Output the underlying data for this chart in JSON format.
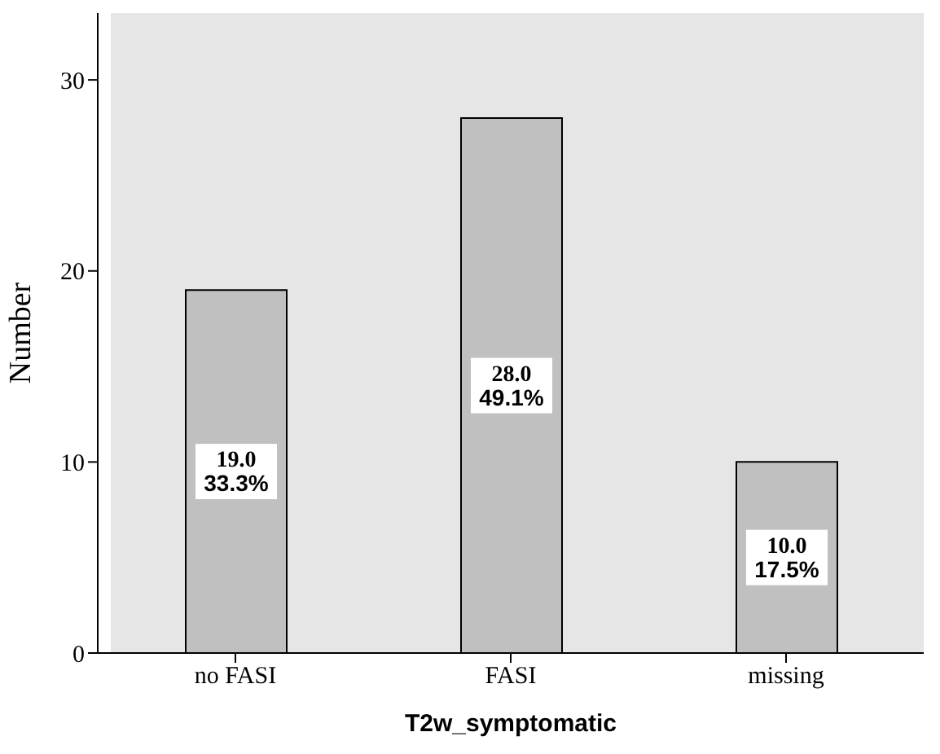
{
  "chart_data": {
    "type": "bar",
    "xlabel": "T2w_symptomatic",
    "ylabel": "Number",
    "categories": [
      "no FASI",
      "FASI",
      "missing"
    ],
    "values": [
      19,
      28,
      10
    ],
    "value_labels": [
      "19.0\n33.3%",
      "28.0\n49.1%",
      "10.0\n17.5%"
    ],
    "color": "#c0c0c0",
    "ylim": [
      0,
      33.5
    ],
    "yticks": [
      0,
      10,
      20,
      30
    ],
    "grid": false,
    "legend": false
  }
}
